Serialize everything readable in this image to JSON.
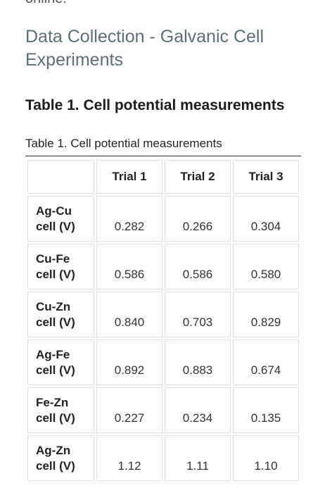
{
  "top_cut_text": "online.",
  "section_title": "Data Collection - Galvanic Cell Experiments",
  "table_heading": "Table 1. Cell potential measurements",
  "table_caption": "Table 1. Cell potential measurements",
  "table": {
    "header": [
      "",
      "Trial 1",
      "Trial 2",
      "Trial 3"
    ],
    "rows": [
      {
        "label_line1": "Ag-Cu",
        "label_line2": "cell (V)",
        "values": [
          "0.282",
          "0.266",
          "0.304"
        ]
      },
      {
        "label_line1": "Cu-Fe",
        "label_line2": "cell (V)",
        "values": [
          "0.586",
          "0.586",
          "0.580"
        ]
      },
      {
        "label_line1": "Cu-Zn",
        "label_line2": "cell (V)",
        "values": [
          "0.840",
          "0.703",
          "0.829"
        ]
      },
      {
        "label_line1": "Ag-Fe",
        "label_line2": "cell (V)",
        "values": [
          "0.892",
          "0.883",
          "0.674"
        ]
      },
      {
        "label_line1": "Fe-Zn",
        "label_line2": "cell (V)",
        "values": [
          "0.227",
          "0.234",
          "0.135"
        ]
      },
      {
        "label_line1": "Ag-Zn",
        "label_line2": "cell (V)",
        "values": [
          "1.12",
          "1.11",
          "1.10"
        ]
      }
    ]
  }
}
